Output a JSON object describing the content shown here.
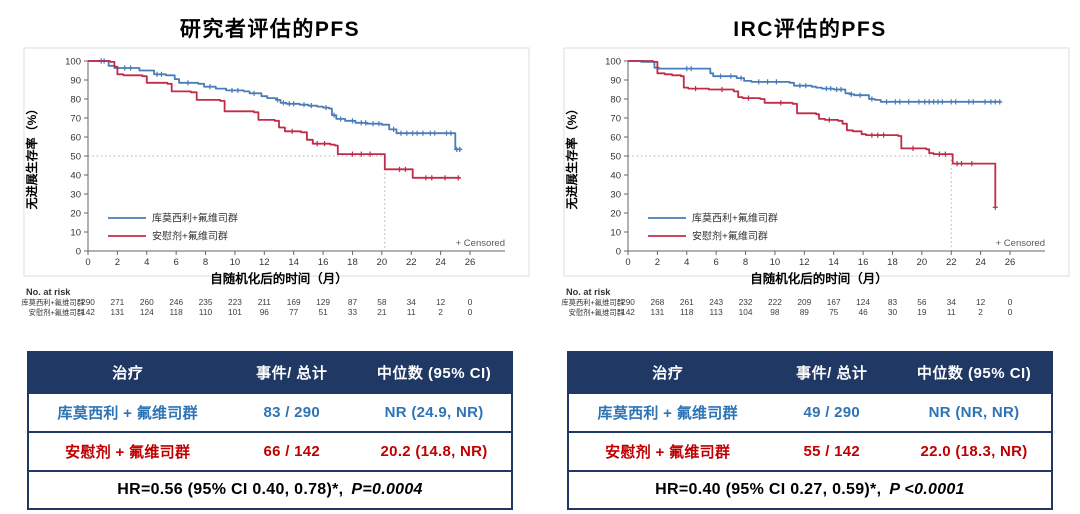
{
  "colors": {
    "curve_blue": "#4A7CB8",
    "curve_red": "#C02B48",
    "table_header_bg": "#1F3864",
    "table_text_blue": "#2E74B5",
    "table_text_red": "#C00000",
    "axis": "#666666",
    "dotted_reference": "#aaaaaa",
    "censored_note_text": "#595959"
  },
  "chart_data": [
    {
      "type": "line",
      "km_style": "kaplan-meier-step",
      "title": "研究者评估的PFS",
      "xlabel": "自随机化后的时间（月）",
      "ylabel": "无进展生存率（%）",
      "xlim": [
        0,
        26
      ],
      "ylim": [
        0,
        100
      ],
      "xticks": [
        0,
        2,
        4,
        6,
        8,
        10,
        12,
        14,
        16,
        18,
        20,
        22,
        24,
        26
      ],
      "yticks": [
        0,
        10,
        20,
        30,
        40,
        50,
        60,
        70,
        80,
        90,
        100
      ],
      "grid": false,
      "legend_position": "inside-bottom-left",
      "censored_note": "+ Censored",
      "median_month": 20.2,
      "median_pct": 50,
      "series": [
        {
          "name": "库莫西利+氟维司群",
          "color": "#4A7CB8",
          "steps": [
            [
              0,
              100
            ],
            [
              1.4,
              97.5
            ],
            [
              1.8,
              96.3
            ],
            [
              3.5,
              95
            ],
            [
              4.5,
              93
            ],
            [
              5.3,
              92.5
            ],
            [
              5.9,
              90.5
            ],
            [
              6.2,
              88.5
            ],
            [
              7.5,
              88
            ],
            [
              7.9,
              86.5
            ],
            [
              8.7,
              85.5
            ],
            [
              9.4,
              84.5
            ],
            [
              10.6,
              84
            ],
            [
              11.0,
              83
            ],
            [
              11.8,
              81.5
            ],
            [
              12.2,
              80.5
            ],
            [
              12.8,
              79.5
            ],
            [
              13.1,
              78
            ],
            [
              13.5,
              77.5
            ],
            [
              14.4,
              77
            ],
            [
              15.0,
              76.5
            ],
            [
              15.6,
              76
            ],
            [
              16.0,
              75.5
            ],
            [
              16.4,
              75
            ],
            [
              16.6,
              71.5
            ],
            [
              16.9,
              69.5
            ],
            [
              17.5,
              68.5
            ],
            [
              18.2,
              67.5
            ],
            [
              19.0,
              67
            ],
            [
              20.0,
              66.5
            ],
            [
              20.5,
              64
            ],
            [
              21.0,
              62
            ],
            [
              24.9,
              62
            ],
            [
              25.0,
              53.5
            ],
            [
              25.4,
              53.5
            ]
          ],
          "censors": [
            [
              0.9,
              100
            ],
            [
              1.1,
              100
            ],
            [
              2.5,
              96.3
            ],
            [
              2.9,
              96.3
            ],
            [
              4.7,
              93
            ],
            [
              5.0,
              93
            ],
            [
              6.8,
              88.5
            ],
            [
              8.3,
              86.5
            ],
            [
              9.8,
              84.5
            ],
            [
              10.2,
              84.5
            ],
            [
              11.3,
              83
            ],
            [
              12.9,
              79.5
            ],
            [
              13.3,
              78
            ],
            [
              13.7,
              77.5
            ],
            [
              14.0,
              77.5
            ],
            [
              14.7,
              77
            ],
            [
              15.2,
              76.5
            ],
            [
              16.2,
              75.5
            ],
            [
              16.75,
              71.5
            ],
            [
              17.2,
              69.5
            ],
            [
              18.0,
              68.5
            ],
            [
              18.6,
              67.5
            ],
            [
              18.9,
              67.5
            ],
            [
              19.4,
              67
            ],
            [
              19.8,
              67
            ],
            [
              20.8,
              64
            ],
            [
              21.3,
              62
            ],
            [
              21.7,
              62
            ],
            [
              22.1,
              62
            ],
            [
              22.4,
              62
            ],
            [
              22.8,
              62
            ],
            [
              23.3,
              62
            ],
            [
              23.6,
              62
            ],
            [
              24.4,
              62
            ],
            [
              24.7,
              62
            ],
            [
              25.1,
              53.5
            ],
            [
              25.3,
              53.5
            ]
          ]
        },
        {
          "name": "安慰剂+氟维司群",
          "color": "#C02B48",
          "steps": [
            [
              0,
              100
            ],
            [
              1.5,
              99.5
            ],
            [
              1.8,
              97
            ],
            [
              2.0,
              93
            ],
            [
              2.4,
              92.5
            ],
            [
              3.7,
              92
            ],
            [
              4.0,
              88.5
            ],
            [
              5.4,
              88
            ],
            [
              5.7,
              84
            ],
            [
              7.0,
              83.5
            ],
            [
              7.4,
              79.5
            ],
            [
              9.0,
              79
            ],
            [
              9.3,
              73.5
            ],
            [
              11.3,
              73
            ],
            [
              11.6,
              69
            ],
            [
              12.7,
              68.5
            ],
            [
              13.0,
              65
            ],
            [
              13.4,
              63
            ],
            [
              14.5,
              62.5
            ],
            [
              14.9,
              58.5
            ],
            [
              15.3,
              56.5
            ],
            [
              16.5,
              56
            ],
            [
              16.8,
              55.5
            ],
            [
              17.0,
              51
            ],
            [
              20.2,
              43
            ],
            [
              22.1,
              38.5
            ],
            [
              25.35,
              38.5
            ]
          ],
          "censors": [
            [
              13.9,
              63
            ],
            [
              15.6,
              56.5
            ],
            [
              16.1,
              56.5
            ],
            [
              18.0,
              51
            ],
            [
              18.6,
              51
            ],
            [
              19.2,
              51
            ],
            [
              21.2,
              43
            ],
            [
              21.6,
              43
            ],
            [
              23.0,
              38.5
            ],
            [
              23.4,
              38.5
            ],
            [
              24.3,
              38.5
            ],
            [
              25.2,
              38.5
            ]
          ]
        }
      ],
      "at_risk": {
        "label": "No. at risk",
        "rows": [
          {
            "name": "库莫西利+氟维司群",
            "values": [
              290,
              271,
              260,
              246,
              235,
              223,
              211,
              169,
              129,
              87,
              58,
              34,
              12,
              0
            ]
          },
          {
            "name": "安慰剂+氟维司群",
            "values": [
              142,
              131,
              124,
              118,
              110,
              101,
              96,
              77,
              51,
              33,
              21,
              11,
              2,
              0
            ]
          }
        ]
      }
    },
    {
      "type": "line",
      "km_style": "kaplan-meier-step",
      "title": "IRC评估的PFS",
      "xlabel": "自随机化后的时间（月）",
      "ylabel": "无进展生存率（%）",
      "xlim": [
        0,
        26
      ],
      "ylim": [
        0,
        100
      ],
      "xticks": [
        0,
        2,
        4,
        6,
        8,
        10,
        12,
        14,
        16,
        18,
        20,
        22,
        24,
        26
      ],
      "yticks": [
        0,
        10,
        20,
        30,
        40,
        50,
        60,
        70,
        80,
        90,
        100
      ],
      "grid": false,
      "legend_position": "inside-bottom-left",
      "censored_note": "+ Censored",
      "median_month": 22.0,
      "median_pct": 50,
      "series": [
        {
          "name": "库莫西利+氟维司群",
          "color": "#4A7CB8",
          "steps": [
            [
              0,
              100
            ],
            [
              0.9,
              99.5
            ],
            [
              1.8,
              96.5
            ],
            [
              2.1,
              96
            ],
            [
              5.6,
              93.5
            ],
            [
              5.8,
              92
            ],
            [
              7.4,
              91
            ],
            [
              7.9,
              89.5
            ],
            [
              8.4,
              89
            ],
            [
              11.0,
              88.5
            ],
            [
              11.3,
              87
            ],
            [
              12.5,
              86.5
            ],
            [
              12.8,
              86
            ],
            [
              13.2,
              85.5
            ],
            [
              14.0,
              85
            ],
            [
              14.8,
              83
            ],
            [
              15.1,
              82.5
            ],
            [
              15.4,
              82
            ],
            [
              16.4,
              80
            ],
            [
              16.8,
              79.5
            ],
            [
              17.2,
              78.5
            ],
            [
              25.4,
              78.5
            ]
          ],
          "censors": [
            [
              4.0,
              96
            ],
            [
              4.3,
              96
            ],
            [
              6.3,
              92
            ],
            [
              7.0,
              92
            ],
            [
              7.7,
              91
            ],
            [
              8.9,
              89
            ],
            [
              9.5,
              89
            ],
            [
              10.1,
              89
            ],
            [
              11.7,
              87
            ],
            [
              12.1,
              87
            ],
            [
              13.5,
              85.5
            ],
            [
              13.8,
              85.5
            ],
            [
              14.2,
              85
            ],
            [
              14.5,
              85
            ],
            [
              15.2,
              82.5
            ],
            [
              15.8,
              82
            ],
            [
              16.6,
              80
            ],
            [
              17.6,
              78.5
            ],
            [
              18.2,
              78.5
            ],
            [
              18.5,
              78.5
            ],
            [
              19.1,
              78.5
            ],
            [
              19.8,
              78.5
            ],
            [
              20.2,
              78.5
            ],
            [
              20.5,
              78.5
            ],
            [
              20.8,
              78.5
            ],
            [
              21.1,
              78.5
            ],
            [
              21.4,
              78.5
            ],
            [
              22.0,
              78.5
            ],
            [
              22.3,
              78.5
            ],
            [
              23.2,
              78.5
            ],
            [
              23.5,
              78.5
            ],
            [
              24.3,
              78.5
            ],
            [
              24.7,
              78.5
            ],
            [
              25.0,
              78.5
            ],
            [
              25.3,
              78.5
            ]
          ]
        },
        {
          "name": "安慰剂+氟维司群",
          "color": "#C02B48",
          "steps": [
            [
              0,
              100
            ],
            [
              1.7,
              99.5
            ],
            [
              2.0,
              93.5
            ],
            [
              2.5,
              93
            ],
            [
              3.0,
              92.5
            ],
            [
              3.6,
              92
            ],
            [
              3.8,
              86
            ],
            [
              4.1,
              85.5
            ],
            [
              5.5,
              85
            ],
            [
              7.2,
              84
            ],
            [
              7.5,
              81
            ],
            [
              7.8,
              80.5
            ],
            [
              9.0,
              80
            ],
            [
              9.3,
              78
            ],
            [
              11.2,
              77.5
            ],
            [
              11.5,
              72.5
            ],
            [
              12.8,
              72
            ],
            [
              13.0,
              69.5
            ],
            [
              13.4,
              69
            ],
            [
              14.3,
              68.5
            ],
            [
              14.6,
              67
            ],
            [
              14.9,
              63.5
            ],
            [
              15.3,
              63
            ],
            [
              15.9,
              61.5
            ],
            [
              16.2,
              61
            ],
            [
              18.4,
              60.5
            ],
            [
              18.6,
              54
            ],
            [
              20.3,
              53.5
            ],
            [
              20.5,
              51.5
            ],
            [
              20.8,
              51
            ],
            [
              22.1,
              46
            ],
            [
              24.9,
              46
            ],
            [
              25.0,
              23
            ]
          ],
          "censors": [
            [
              4.6,
              85.5
            ],
            [
              6.4,
              85
            ],
            [
              8.2,
              80.5
            ],
            [
              10.4,
              78
            ],
            [
              13.7,
              69
            ],
            [
              16.6,
              61
            ],
            [
              17.0,
              61
            ],
            [
              17.4,
              61
            ],
            [
              19.4,
              54
            ],
            [
              21.2,
              51
            ],
            [
              21.6,
              51
            ],
            [
              22.4,
              46
            ],
            [
              22.7,
              46
            ],
            [
              23.4,
              46
            ],
            [
              25.0,
              23
            ]
          ]
        }
      ],
      "at_risk": {
        "label": "No. at risk",
        "rows": [
          {
            "name": "库莫西利+氟维司群",
            "values": [
              290,
              268,
              261,
              243,
              232,
              222,
              209,
              167,
              124,
              83,
              56,
              34,
              12,
              0
            ]
          },
          {
            "name": "安慰剂+氟维司群",
            "values": [
              142,
              131,
              118,
              113,
              104,
              98,
              89,
              75,
              46,
              30,
              19,
              11,
              2,
              0
            ]
          }
        ]
      }
    }
  ],
  "tables": [
    {
      "headers": [
        "治疗",
        "事件/ 总计",
        "中位数 (95% CI)"
      ],
      "rows": [
        {
          "treatment": "库莫西利 + 氟维司群",
          "events": "83 / 290",
          "median": "NR (24.9, NR)"
        },
        {
          "treatment": "安慰剂 + 氟维司群",
          "events": "66 / 142",
          "median": "20.2 (14.8, NR)"
        }
      ],
      "hr_text": "HR=0.56 (95% CI 0.40, 0.78)*,",
      "p_text": "P=0.0004"
    },
    {
      "headers": [
        "治疗",
        "事件/ 总计",
        "中位数 (95% CI)"
      ],
      "rows": [
        {
          "treatment": "库莫西利 + 氟维司群",
          "events": "49 / 290",
          "median": "NR (NR, NR)"
        },
        {
          "treatment": "安慰剂 + 氟维司群",
          "events": "55 / 142",
          "median": "22.0 (18.3, NR)"
        }
      ],
      "hr_text": "HR=0.40 (95% CI 0.27, 0.59)*,",
      "p_text": "P <0.0001"
    }
  ]
}
